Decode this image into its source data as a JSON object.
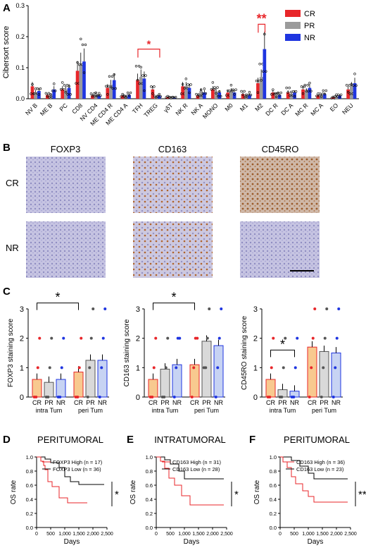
{
  "colors": {
    "cr": "#e8262a",
    "pr": "#9b9b9b",
    "nr": "#1f35e0",
    "sig": "#e8262a",
    "axis": "#000000",
    "fill_cr": "#f8c98f",
    "fill_pr": "#d9d9d9",
    "fill_nr": "#c7d3f3"
  },
  "panel_a": {
    "letter": "A",
    "legend": [
      "CR",
      "PR",
      "NR"
    ],
    "chart_data": {
      "type": "bar",
      "ylabel": "Cibersort score",
      "ylim": [
        0,
        0.3
      ],
      "yticks": [
        "0.0",
        "0.1",
        "0.2",
        "0.3"
      ],
      "categories": [
        "NV B",
        "ME B",
        "PC",
        "CD8",
        "NV CD4",
        "ME CD4 R",
        "ME CD4 A",
        "TFH",
        "TREG",
        "γδT",
        "NK R",
        "NK A",
        "MONO",
        "M0",
        "M1",
        "M2",
        "DC R",
        "DC A",
        "MC R",
        "MC A",
        "EO",
        "NEU"
      ],
      "series": [
        {
          "name": "CR",
          "values": [
            0.04,
            0.012,
            0.03,
            0.09,
            0.01,
            0.035,
            0.01,
            0.06,
            0.03,
            0.005,
            0.04,
            0.01,
            0.03,
            0.02,
            0.015,
            0.05,
            0.02,
            0.02,
            0.03,
            0.01,
            0.005,
            0.03
          ]
        },
        {
          "name": "PR",
          "values": [
            0.02,
            0.012,
            0.03,
            0.11,
            0.015,
            0.045,
            0.008,
            0.07,
            0.005,
            0.004,
            0.04,
            0.025,
            0.025,
            0.025,
            0.01,
            0.07,
            0.015,
            0.015,
            0.025,
            0.012,
            0.008,
            0.04
          ]
        },
        {
          "name": "NR",
          "values": [
            0.025,
            0.03,
            0.035,
            0.12,
            0.01,
            0.06,
            0.012,
            0.065,
            0.01,
            0.003,
            0.035,
            0.02,
            0.02,
            0.02,
            0.012,
            0.16,
            0.012,
            0.02,
            0.035,
            0.015,
            0.01,
            0.05
          ]
        }
      ],
      "annotations": [
        {
          "text": "*",
          "between": [
            7,
            8
          ]
        },
        {
          "text": "**",
          "between": [
            15,
            15
          ]
        }
      ]
    }
  },
  "panel_b": {
    "letter": "B",
    "columns": [
      "FOXP3",
      "CD163",
      "CD45RO"
    ],
    "rows": [
      "CR",
      "NR"
    ]
  },
  "panel_c": {
    "letter": "C",
    "charts": [
      {
        "ylabel": "FOXP3 staining score",
        "group_labels": [
          "intra Tum",
          "peri Tum"
        ],
        "bar_labels": [
          "CR",
          "PR",
          "NR",
          "CR",
          "PR",
          "NR"
        ],
        "chart_data": {
          "type": "bar",
          "ylim": [
            0,
            3
          ],
          "values": [
            0.6,
            0.5,
            0.6,
            0.85,
            1.25,
            1.25
          ],
          "sig": "*"
        }
      },
      {
        "ylabel": "CD163 staining score",
        "group_labels": [
          "intra Tum",
          "peri Tum"
        ],
        "bar_labels": [
          "CR",
          "PR",
          "NR",
          "CR",
          "PR",
          "NR"
        ],
        "chart_data": {
          "type": "bar",
          "ylim": [
            0,
            3
          ],
          "values": [
            0.6,
            0.95,
            1.1,
            1.1,
            1.9,
            1.75
          ],
          "sig": "*"
        }
      },
      {
        "ylabel": "CD45RO staining score",
        "group_labels": [
          "intra Tum",
          "peri Tum"
        ],
        "bar_labels": [
          "CR",
          "PR",
          "NR",
          "CR",
          "PR",
          "NR"
        ],
        "chart_data": {
          "type": "bar",
          "ylim": [
            0,
            3
          ],
          "values": [
            0.6,
            0.25,
            0.2,
            1.7,
            1.55,
            1.5
          ],
          "sig": "*"
        }
      }
    ],
    "yticks": [
      "0",
      "1",
      "2",
      "3"
    ]
  },
  "panel_d": {
    "letter": "D",
    "title": "PERITUMORAL",
    "legend": [
      "FOXP3 High (n = 17)",
      "FOXP3 Low (n = 36)"
    ],
    "sig": "*"
  },
  "panel_e": {
    "letter": "E",
    "title": "INTRATUMORAL",
    "legend": [
      "CD163 High (n = 31)",
      "CD163 Low (n = 28)"
    ],
    "sig": "*"
  },
  "panel_f": {
    "letter": "F",
    "title": "PERITUMORAL",
    "legend": [
      "CD163 High (n = 36)",
      "CD163 Low (n = 23)"
    ],
    "sig": "**"
  },
  "km_axes": {
    "ylabel": "OS rate",
    "xlabel": "Days",
    "yticks": [
      "0.0",
      "0.2",
      "0.4",
      "0.6",
      "0.8",
      "1.0"
    ],
    "xticks": [
      "0",
      "500",
      "1,000",
      "1,500",
      "2,000",
      "2,500"
    ]
  },
  "km_curves": {
    "d": {
      "high": [
        [
          0,
          1
        ],
        [
          150,
          0.94
        ],
        [
          250,
          0.88
        ],
        [
          300,
          0.82
        ],
        [
          400,
          0.65
        ],
        [
          550,
          0.58
        ],
        [
          800,
          0.42
        ],
        [
          1100,
          0.35
        ],
        [
          1800,
          0.35
        ]
      ],
      "low": [
        [
          0,
          1
        ],
        [
          300,
          0.97
        ],
        [
          500,
          0.92
        ],
        [
          800,
          0.85
        ],
        [
          1000,
          0.72
        ],
        [
          1200,
          0.65
        ],
        [
          1500,
          0.61
        ],
        [
          2400,
          0.61
        ]
      ]
    },
    "e": {
      "high": [
        [
          0,
          1
        ],
        [
          150,
          0.94
        ],
        [
          300,
          0.84
        ],
        [
          450,
          0.7
        ],
        [
          650,
          0.6
        ],
        [
          900,
          0.45
        ],
        [
          1200,
          0.32
        ],
        [
          2400,
          0.32
        ]
      ],
      "low": [
        [
          0,
          1
        ],
        [
          300,
          0.96
        ],
        [
          500,
          0.9
        ],
        [
          800,
          0.8
        ],
        [
          1000,
          0.69
        ],
        [
          2400,
          0.69
        ]
      ]
    },
    "f": {
      "high": [
        [
          0,
          1
        ],
        [
          100,
          0.93
        ],
        [
          250,
          0.85
        ],
        [
          400,
          0.72
        ],
        [
          550,
          0.62
        ],
        [
          800,
          0.52
        ],
        [
          1000,
          0.44
        ],
        [
          1200,
          0.36
        ],
        [
          2400,
          0.36
        ]
      ],
      "low": [
        [
          0,
          1
        ],
        [
          400,
          0.95
        ],
        [
          700,
          0.87
        ],
        [
          1000,
          0.77
        ],
        [
          1200,
          0.69
        ],
        [
          2400,
          0.69
        ]
      ]
    }
  }
}
